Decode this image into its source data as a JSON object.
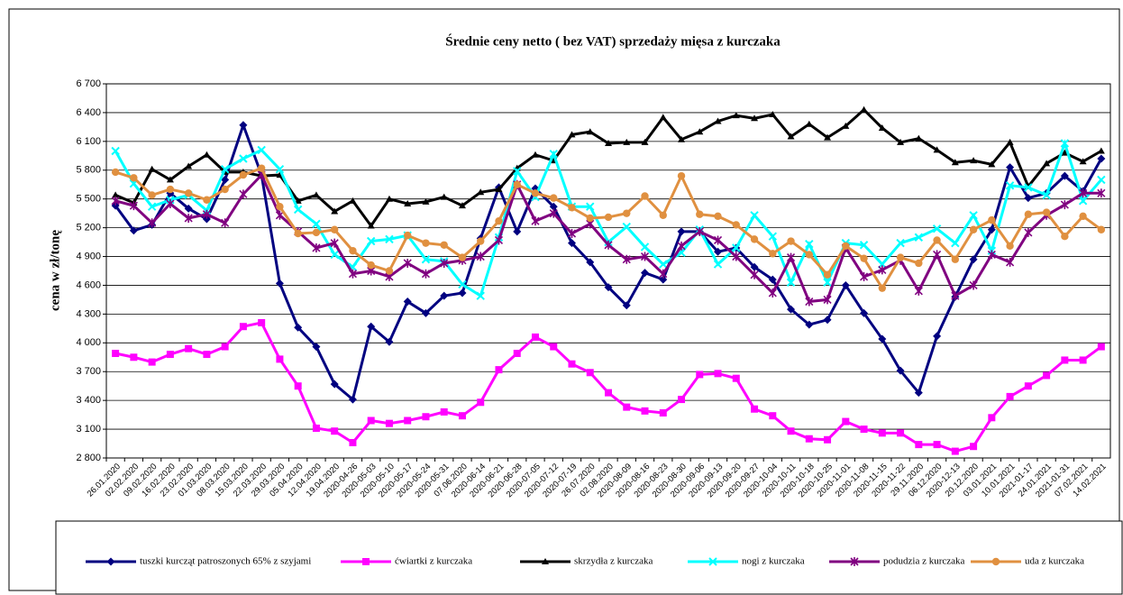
{
  "chart_data": {
    "type": "line",
    "title": "Średnie ceny netto ( bez VAT) sprzedaży mięsa z kurczaka",
    "y_label": "cena w zł/tonę",
    "categories": [
      "26.01.2020",
      "02.02.2020",
      "09.02.2020",
      "16.02.2020",
      "23.02.2020",
      "01.03.2020",
      "08.03.2020",
      "15.03.2020",
      "22.03.2020",
      "29.03.2020",
      "05.04.2020",
      "12.04.2020",
      "19.04.2020",
      "2020-04-26",
      "2020-05-03",
      "2020-05-10",
      "2020-05-17",
      "2020-05-24",
      "2020-05-31",
      "07.06.2020",
      "2020-06-14",
      "2020-06-21",
      "2020-06-28",
      "2020-07-05",
      "2020-07-12",
      "2020-07-19",
      "26.07.2020",
      "02.08.2020",
      "2020-08-09",
      "2020-08-16",
      "2020-08-23",
      "2020-08-30",
      "2020-09-06",
      "2020-09-13",
      "2020-09-20",
      "2020-09-27",
      "2020-10-04",
      "2020-10-11",
      "2020-10-18",
      "2020-10-25",
      "2020-11-01",
      "2020-11-08",
      "2020-11-15",
      "2020-11-22",
      "29.11.2020",
      "06.12.2020",
      "2020-12-13",
      "20.12.2020",
      "03.01.2021",
      "10.01.2021",
      "2021-01-17",
      "24.01.2021",
      "2021-01-31",
      "07.02.2021",
      "14.02.2021"
    ],
    "series": [
      {
        "name": "tuszki kurcząt patroszonych 65% z szyjami",
        "color": "#000080",
        "marker": "diamond",
        "values": [
          5430,
          5170,
          5230,
          5560,
          5400,
          5290,
          5700,
          6270,
          5750,
          4620,
          4160,
          3960,
          3570,
          3410,
          4170,
          4010,
          4430,
          4310,
          4490,
          4520,
          5090,
          5620,
          5160,
          5610,
          5420,
          5040,
          4840,
          4580,
          4390,
          4730,
          4660,
          5160,
          5160,
          4950,
          4990,
          4790,
          4660,
          4350,
          4190,
          4240,
          4600,
          4310,
          4040,
          3710,
          3480,
          4070,
          4480,
          4870,
          5180,
          5830,
          5510,
          5560,
          5740,
          5580,
          5920
        ]
      },
      {
        "name": "ćwiartki z kurczaka",
        "color": "#ff00ff",
        "marker": "square",
        "values": [
          3890,
          3850,
          3800,
          3880,
          3940,
          3880,
          3960,
          4170,
          4210,
          3830,
          3550,
          3110,
          3080,
          2960,
          3190,
          3160,
          3190,
          3230,
          3280,
          3240,
          3380,
          3720,
          3890,
          4060,
          3960,
          3780,
          3690,
          3480,
          3330,
          3290,
          3270,
          3410,
          3670,
          3680,
          3630,
          3310,
          3240,
          3080,
          3000,
          2990,
          3180,
          3100,
          3060,
          3060,
          2940,
          2940,
          2870,
          2920,
          3220,
          3440,
          3550,
          3660,
          3820,
          3820,
          3960
        ]
      },
      {
        "name": "skrzydła z kurczaka",
        "color": "#000000",
        "marker": "triangle",
        "values": [
          5540,
          5460,
          5810,
          5700,
          5840,
          5960,
          5780,
          5780,
          5740,
          5750,
          5480,
          5540,
          5370,
          5480,
          5220,
          5500,
          5450,
          5470,
          5520,
          5430,
          5570,
          5600,
          5820,
          5960,
          5900,
          6170,
          6200,
          6080,
          6090,
          6090,
          6350,
          6120,
          6200,
          6310,
          6370,
          6340,
          6380,
          6150,
          6280,
          6140,
          6260,
          6430,
          6240,
          6090,
          6130,
          6010,
          5880,
          5900,
          5860,
          6090,
          5630,
          5870,
          5980,
          5890,
          6000
        ]
      },
      {
        "name": "nogi z kurczaka",
        "color": "#00ffff",
        "marker": "x",
        "values": [
          6000,
          5660,
          5420,
          5490,
          5540,
          5380,
          5810,
          5920,
          6010,
          5810,
          5390,
          5240,
          4920,
          4790,
          5060,
          5080,
          5120,
          4870,
          4850,
          4610,
          4490,
          5100,
          5790,
          5520,
          5970,
          5420,
          5420,
          5050,
          5210,
          5000,
          4820,
          4940,
          5180,
          4820,
          4990,
          5330,
          5110,
          4630,
          5030,
          4630,
          5040,
          5020,
          4820,
          5040,
          5100,
          5190,
          5040,
          5330,
          4960,
          5640,
          5620,
          5540,
          6080,
          5480,
          5700
        ]
      },
      {
        "name": "podudzia z kurczaka",
        "color": "#800080",
        "marker": "star",
        "values": [
          5480,
          5430,
          5250,
          5450,
          5300,
          5340,
          5250,
          5550,
          5750,
          5330,
          5160,
          4990,
          5040,
          4720,
          4750,
          4690,
          4830,
          4720,
          4830,
          4860,
          4900,
          5070,
          5650,
          5270,
          5350,
          5140,
          5240,
          5020,
          4870,
          4900,
          4720,
          5010,
          5160,
          5070,
          4900,
          4710,
          4520,
          4890,
          4430,
          4450,
          4990,
          4690,
          4760,
          4860,
          4540,
          4920,
          4490,
          4600,
          4920,
          4840,
          5150,
          5330,
          5440,
          5560,
          5560
        ]
      },
      {
        "name": "uda z kurczaka",
        "color": "#e09040",
        "marker": "circle",
        "values": [
          5780,
          5720,
          5540,
          5600,
          5560,
          5490,
          5600,
          5750,
          5820,
          5420,
          5140,
          5150,
          5180,
          4960,
          4810,
          4750,
          5120,
          5040,
          5020,
          4890,
          5060,
          5270,
          5650,
          5560,
          5510,
          5410,
          5300,
          5310,
          5350,
          5530,
          5330,
          5740,
          5340,
          5320,
          5230,
          5080,
          4930,
          5060,
          4920,
          4710,
          5010,
          4880,
          4570,
          4890,
          4830,
          5070,
          4870,
          5180,
          5280,
          5010,
          5340,
          5360,
          5110,
          5320,
          5180
        ]
      }
    ],
    "ylim": [
      2800,
      6700
    ],
    "yticks": [
      {
        "value": 2800,
        "label": "2 800"
      },
      {
        "value": 3100,
        "label": "3 100"
      },
      {
        "value": 3400,
        "label": "3 400"
      },
      {
        "value": 3700,
        "label": "3 700"
      },
      {
        "value": 4000,
        "label": "4 000"
      },
      {
        "value": 4300,
        "label": "4 300"
      },
      {
        "value": 4600,
        "label": "4 600"
      },
      {
        "value": 4900,
        "label": "4 900"
      },
      {
        "value": 5200,
        "label": "5 200"
      },
      {
        "value": 5500,
        "label": "5 500"
      },
      {
        "value": 5800,
        "label": "5 800"
      },
      {
        "value": 6100,
        "label": "6 100"
      },
      {
        "value": 6400,
        "label": "6 400"
      },
      {
        "value": 6700,
        "label": "6 700"
      }
    ],
    "grid": true,
    "legend": "bottom"
  }
}
